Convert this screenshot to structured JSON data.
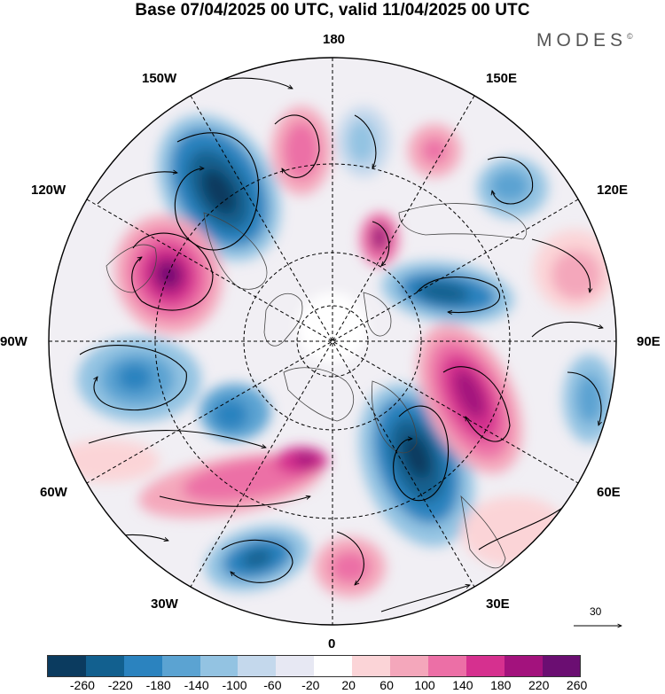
{
  "title": "Base 07/04/2025 00 UTC, valid 11/04/2025 00 UTC",
  "brand": "MODES",
  "brand_mark": "©",
  "longitude_labels": {
    "top": "180",
    "bottom": "0",
    "left": "90W",
    "right": "90E",
    "upper_left_1": "150W",
    "upper_left_2": "120W",
    "upper_right_1": "150E",
    "upper_right_2": "120E",
    "lower_left_1": "60W",
    "lower_left_2": "30W",
    "lower_right_1": "60E",
    "lower_right_2": "30E"
  },
  "reference_vector": {
    "label": "30"
  },
  "colorbar": {
    "colors": [
      "#0b3b5f",
      "#12608f",
      "#2b83bf",
      "#5ba3d2",
      "#93c3e2",
      "#c4d8ec",
      "#e7e8f3",
      "#ffffff",
      "#fbd4d7",
      "#f4a7bb",
      "#ec6fa6",
      "#d6308f",
      "#a3127d",
      "#6b0e72"
    ],
    "ticks": [
      "-260",
      "-220",
      "-180",
      "-140",
      "-100",
      "-60",
      "-20",
      "20",
      "60",
      "100",
      "140",
      "180",
      "220",
      "260"
    ]
  }
}
